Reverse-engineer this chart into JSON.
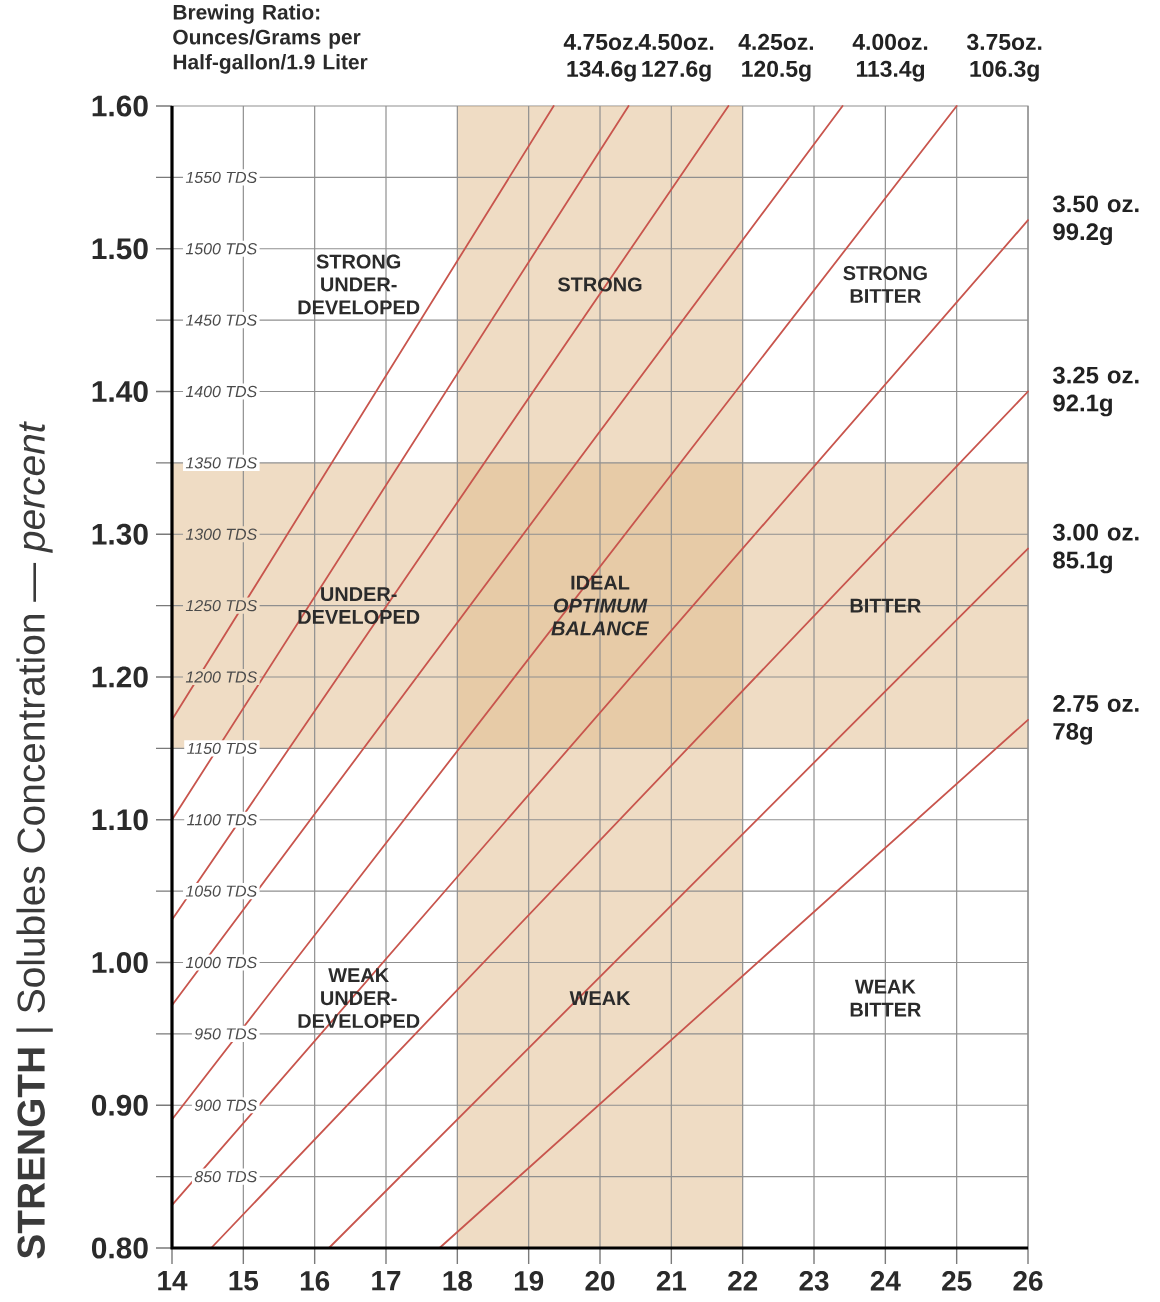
{
  "chart_data": {
    "type": "line",
    "title": "Brewing Ratio: Ounces/Grams per Half-gallon/1.9 Liter",
    "ylabel": "**STRENGTH** | Solubles Concentration — *percent*",
    "xlim": [
      14,
      26
    ],
    "ylim": [
      0.8,
      1.6
    ],
    "xticks": [
      14,
      15,
      16,
      17,
      18,
      19,
      20,
      21,
      22,
      23,
      24,
      25,
      26
    ],
    "yticks": [
      {
        "value": 0.8,
        "label": "0.80"
      },
      {
        "value": 0.85,
        "label": null
      },
      {
        "value": 0.9,
        "label": "0.90"
      },
      {
        "value": 0.95,
        "label": null
      },
      {
        "value": 1.0,
        "label": "1.00"
      },
      {
        "value": 1.05,
        "label": null
      },
      {
        "value": 1.1,
        "label": "1.10"
      },
      {
        "value": 1.15,
        "label": null
      },
      {
        "value": 1.2,
        "label": "1.20"
      },
      {
        "value": 1.25,
        "label": null
      },
      {
        "value": 1.3,
        "label": "1.30"
      },
      {
        "value": 1.35,
        "label": null
      },
      {
        "value": 1.4,
        "label": "1.40"
      },
      {
        "value": 1.45,
        "label": null
      },
      {
        "value": 1.5,
        "label": "1.50"
      },
      {
        "value": 1.55,
        "label": null
      },
      {
        "value": 1.6,
        "label": "1.60"
      }
    ],
    "grid": "x",
    "bands": [
      {
        "axis": "x",
        "from": 18,
        "to": 22,
        "color": "#efdcc4"
      },
      {
        "axis": "y",
        "from": 1.15,
        "to": 1.35,
        "color": "#efdcc4"
      }
    ],
    "ref_lines": [
      {
        "axis": "y",
        "value": 0.85,
        "label": "850 TDS",
        "color": "#8f8f8f"
      },
      {
        "axis": "y",
        "value": 0.9,
        "label": "900 TDS",
        "color": "#8f8f8f"
      },
      {
        "axis": "y",
        "value": 0.95,
        "label": "950 TDS",
        "color": "#8f8f8f"
      },
      {
        "axis": "y",
        "value": 1.0,
        "label": "1000 TDS",
        "color": "#8f8f8f"
      },
      {
        "axis": "y",
        "value": 1.05,
        "label": "1050 TDS",
        "color": "#8f8f8f"
      },
      {
        "axis": "y",
        "value": 1.1,
        "label": "1100 TDS",
        "color": "#8f8f8f"
      },
      {
        "axis": "y",
        "value": 1.15,
        "label": "1150 TDS",
        "color": "#8f8f8f"
      },
      {
        "axis": "y",
        "value": 1.2,
        "label": "1200 TDS",
        "color": "#8f8f8f"
      },
      {
        "axis": "y",
        "value": 1.25,
        "label": "1250 TDS",
        "color": "#8f8f8f"
      },
      {
        "axis": "y",
        "value": 1.3,
        "label": "1300 TDS",
        "color": "#8f8f8f"
      },
      {
        "axis": "y",
        "value": 1.35,
        "label": "1350 TDS",
        "color": "#8f8f8f"
      },
      {
        "axis": "y",
        "value": 1.4,
        "label": "1400 TDS",
        "color": "#8f8f8f"
      },
      {
        "axis": "y",
        "value": 1.45,
        "label": "1450 TDS",
        "color": "#8f8f8f"
      },
      {
        "axis": "y",
        "value": 1.5,
        "label": "1500 TDS",
        "color": "#8f8f8f"
      },
      {
        "axis": "y",
        "value": 1.55,
        "label": "1550 TDS",
        "color": "#8f8f8f"
      }
    ],
    "series": [
      {
        "name": "4.75oz. 134.6g",
        "color": "#c8554d",
        "x": [
          14,
          19.35
        ],
        "values": [
          1.17,
          1.6
        ]
      },
      {
        "name": "4.50oz. 127.6g",
        "color": "#c8554d",
        "x": [
          14,
          20.4
        ],
        "values": [
          1.1,
          1.6
        ]
      },
      {
        "name": "4.25oz. 120.5g",
        "color": "#c8554d",
        "x": [
          14,
          21.8
        ],
        "values": [
          1.03,
          1.6
        ]
      },
      {
        "name": "4.00oz. 113.4g",
        "color": "#c8554d",
        "x": [
          14,
          23.4
        ],
        "values": [
          0.97,
          1.6
        ]
      },
      {
        "name": "3.75oz. 106.3g",
        "color": "#c8554d",
        "x": [
          14,
          25.0
        ],
        "values": [
          0.89,
          1.6
        ]
      },
      {
        "name": "3.50 oz. 99.2g",
        "color": "#c8554d",
        "x": [
          14,
          26
        ],
        "values": [
          0.83,
          1.52
        ]
      },
      {
        "name": "3.25 oz. 92.1g",
        "color": "#c8554d",
        "x": [
          14.55,
          26
        ],
        "values": [
          0.8,
          1.4
        ]
      },
      {
        "name": "3.00 oz. 85.1g",
        "color": "#c8554d",
        "x": [
          16.2,
          26
        ],
        "values": [
          0.8,
          1.29
        ]
      },
      {
        "name": "2.75 oz. 78g",
        "color": "#c8554d",
        "x": [
          17.75,
          26
        ],
        "values": [
          0.8,
          1.17
        ]
      }
    ],
    "annotations": [
      "STRONG UNDER-DEVELOPED",
      "STRONG",
      "STRONG BITTER",
      "UNDER-DEVELOPED",
      "IDEAL *OPTIMUM BALANCE*",
      "BITTER",
      "WEAK UNDER-DEVELOPED",
      "WEAK",
      "WEAK BITTER"
    ]
  }
}
